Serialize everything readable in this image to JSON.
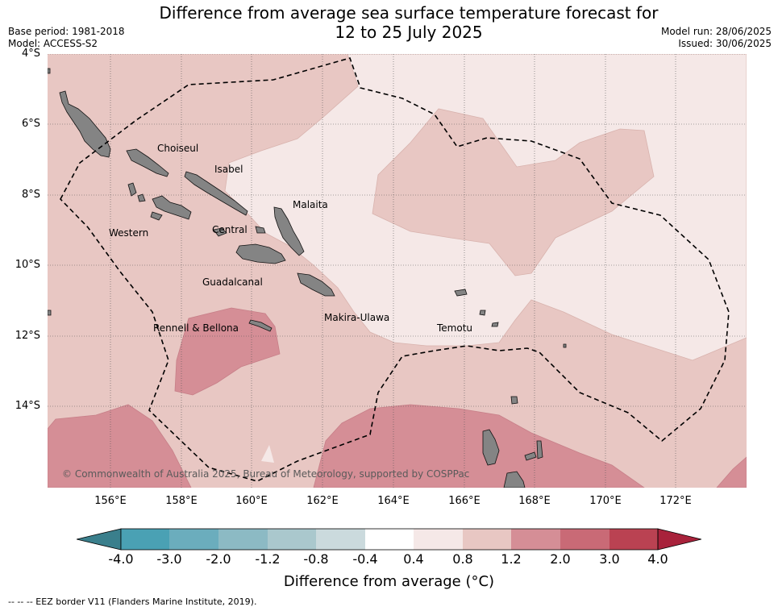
{
  "header": {
    "title_line1": "Difference from average sea surface temperature forecast for",
    "title_line2": "12 to 25 July 2025",
    "base_period": "Base period: 1981-2018",
    "model": "Model: ACCESS-S2",
    "model_run": "Model run: 28/06/2025",
    "issued": "Issued: 30/06/2025"
  },
  "map": {
    "lat_labels": [
      "4°S",
      "6°S",
      "8°S",
      "10°S",
      "12°S",
      "14°S"
    ],
    "lon_labels": [
      "156°E",
      "158°E",
      "160°E",
      "162°E",
      "164°E",
      "166°E",
      "168°E",
      "170°E",
      "172°E"
    ],
    "regions": [
      "Choiseul",
      "Isabel",
      "Malaita",
      "Western",
      "Central",
      "Guadalcanal",
      "Makira-Ulawa",
      "Rennell & Bellona",
      "Temotu"
    ],
    "credit": "© Commonwealth of Australia 2025, Bureau of Meteorology, supported by COSPPac",
    "colors": {
      "ocean_0.4_0.8": "#f5e8e7",
      "ocean_0.8_1.2": "#e8c7c3",
      "ocean_1.2_2.0": "#d58e96",
      "land": "#848484"
    }
  },
  "colorbar": {
    "title": "Difference from average (°C)",
    "tick_labels": [
      "-4.0",
      "-3.0",
      "-2.0",
      "-1.2",
      "-0.8",
      "-0.4",
      "0.4",
      "0.8",
      "1.2",
      "2.0",
      "3.0",
      "4.0"
    ],
    "colors": [
      "#3a7f8c",
      "#4aa1b4",
      "#6badbd",
      "#8cbac4",
      "#aac8cd",
      "#cbdadd",
      "#ffffff",
      "#f5e8e7",
      "#e8c7c3",
      "#d58e96",
      "#c96a76",
      "#ba4252",
      "#a8223b"
    ]
  },
  "footnote": "--  --  -- EEZ border V11 (Flanders Marine Institute, 2019)."
}
